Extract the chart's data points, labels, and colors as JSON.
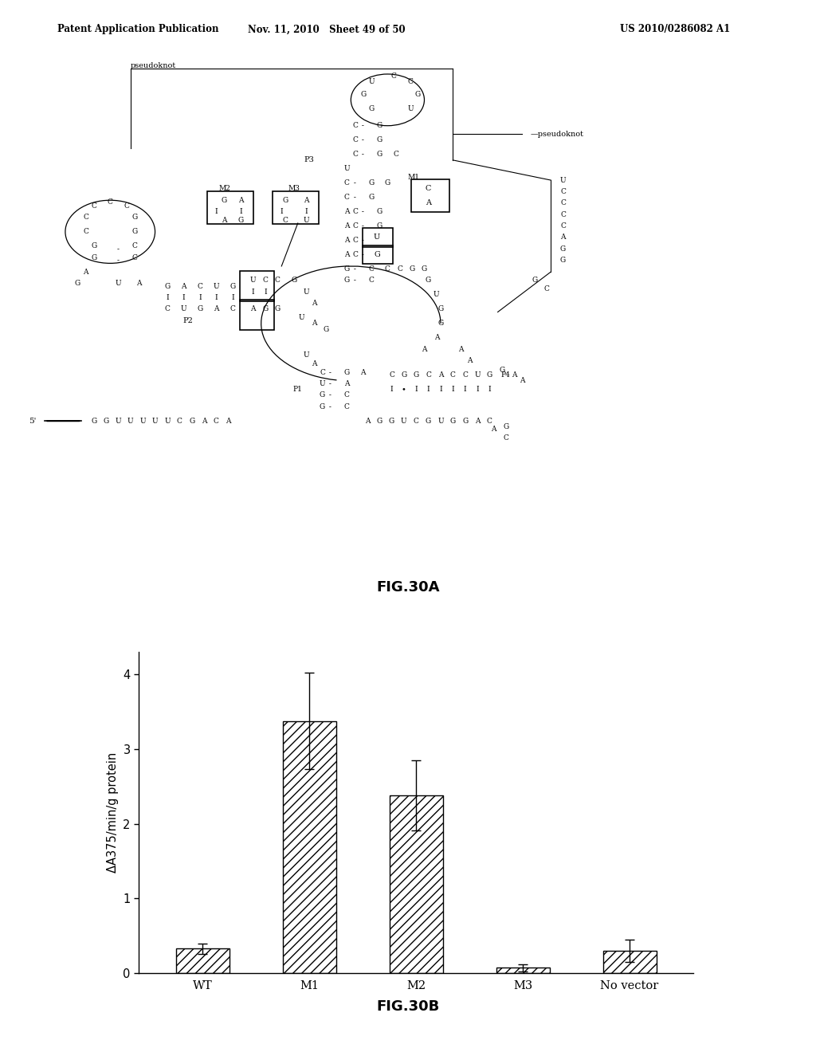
{
  "page_background": "#ffffff",
  "header_left": "Patent Application Publication",
  "header_center": "Nov. 11, 2010  Sheet 49 of 50",
  "header_right": "US 2010/0286082 A1",
  "fig30a_label": "FIG.30A",
  "fig30b_label": "FIG.30B",
  "bar_categories": [
    "WT",
    "M1",
    "M2",
    "M3",
    "No vector"
  ],
  "bar_values": [
    0.33,
    3.38,
    2.38,
    0.07,
    0.3
  ],
  "bar_errors": [
    0.07,
    0.65,
    0.47,
    0.05,
    0.15
  ],
  "ylabel": "ΔA375/min/g protein",
  "ylim": [
    0,
    4.3
  ],
  "yticks": [
    0,
    1,
    2,
    3,
    4
  ],
  "bar_color": "#ffffff",
  "bar_edge_color": "#000000",
  "hatch": "///",
  "figure_width": 10.24,
  "figure_height": 13.2,
  "dpi": 100
}
